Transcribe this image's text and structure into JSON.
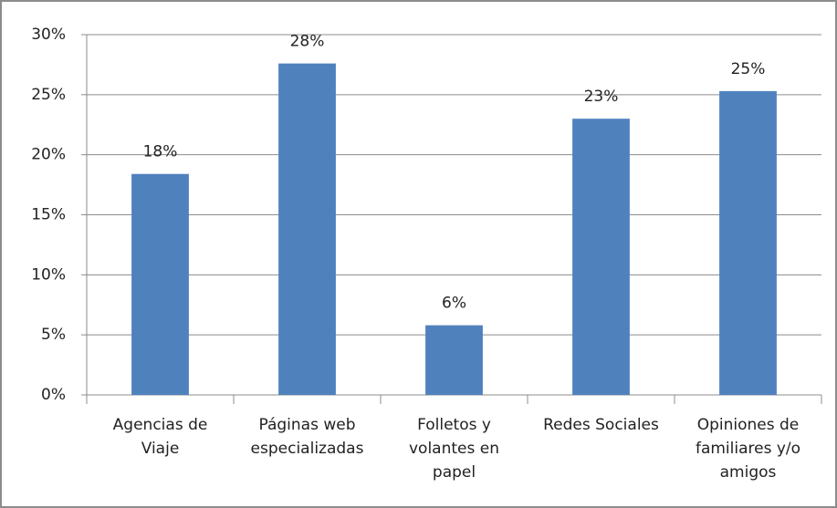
{
  "chart_data": {
    "type": "bar",
    "categories": [
      "Agencias de Viaje",
      "Páginas web especializadas",
      "Folletos y volantes en papel",
      "Redes Sociales",
      "Opiniones de familiares y/o amigos"
    ],
    "values": [
      18.4,
      27.6,
      5.8,
      23.0,
      25.3
    ],
    "value_labels": [
      "18%",
      "28%",
      "6%",
      "23%",
      "25%"
    ],
    "color": "#4f81bd",
    "ylim": [
      0,
      30
    ],
    "yticks": [
      {
        "value": 0,
        "label": "0%"
      },
      {
        "value": 5,
        "label": "5%"
      },
      {
        "value": 10,
        "label": "10%"
      },
      {
        "value": 15,
        "label": "15%"
      },
      {
        "value": 20,
        "label": "20%"
      },
      {
        "value": 25,
        "label": "25%"
      },
      {
        "value": 30,
        "label": "30%"
      }
    ],
    "grid": true
  }
}
